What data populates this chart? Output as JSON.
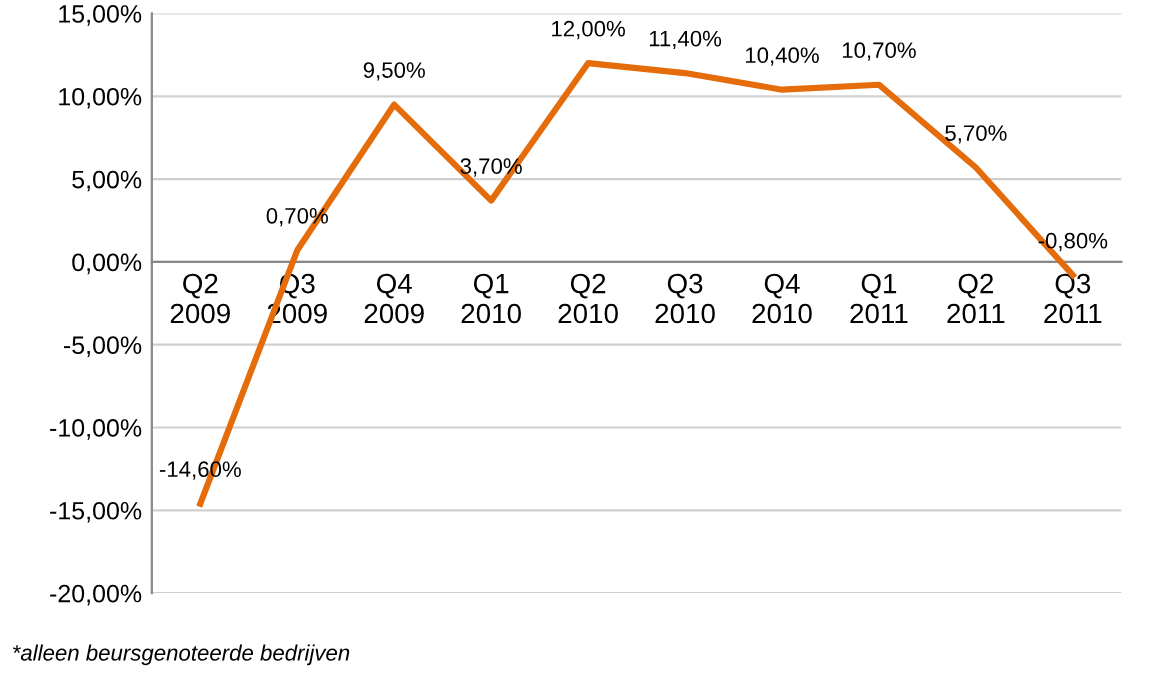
{
  "chart_data": {
    "type": "line",
    "categories": [
      "Q2\n2009",
      "Q3\n2009",
      "Q4\n2009",
      "Q1\n2010",
      "Q2\n2010",
      "Q3\n2010",
      "Q4\n2010",
      "Q1\n2011",
      "Q2\n2011",
      "Q3\n2011"
    ],
    "series": [
      {
        "color": "#e46c0a",
        "values": [
          -14.6,
          0.7,
          9.5,
          3.7,
          12.0,
          11.4,
          10.4,
          10.7,
          5.7,
          -0.8
        ],
        "value_labels": [
          "-14,60%",
          "0,70%",
          "9,50%",
          "3,70%",
          "12,00%",
          "11,40%",
          "10,40%",
          "10,70%",
          "5,70%",
          "-0,80%"
        ]
      }
    ],
    "ylim": [
      -20,
      15
    ],
    "yticks": [
      {
        "value": 15,
        "label": "15,00%"
      },
      {
        "value": 10,
        "label": "10,00%"
      },
      {
        "value": 5,
        "label": "5,00%"
      },
      {
        "value": 0,
        "label": "0,00%"
      },
      {
        "value": -5,
        "label": "-5,00%"
      },
      {
        "value": -10,
        "label": "-10,00%"
      },
      {
        "value": -15,
        "label": "-15,00%"
      },
      {
        "value": -20,
        "label": "-20,00%"
      }
    ],
    "grid": "y",
    "marker": "none",
    "line_style": "solid",
    "legend": false,
    "annotations": [
      "*alleen beursgenoteerde bedrijven"
    ]
  }
}
